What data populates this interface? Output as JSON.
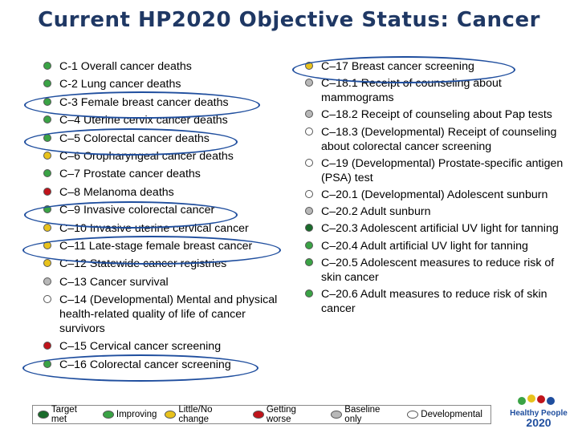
{
  "title": "Current HP2020 Objective Status: Cancer",
  "colors": {
    "target_met": "#1a6b2b",
    "improving": "#3aa345",
    "little_no_change": "#e8c21c",
    "getting_worse": "#c0141b",
    "baseline_only": "#b8b8b8",
    "developmental": "#ffffff",
    "oval": "#1f4e9e"
  },
  "left_items": [
    {
      "text": "C-1 Overall cancer deaths",
      "status": "improving"
    },
    {
      "text": "C-2 Lung cancer deaths",
      "status": "improving"
    },
    {
      "text": "C-3 Female breast cancer deaths",
      "status": "improving"
    },
    {
      "text": "C–4 Uterine cervix cancer deaths",
      "status": "improving"
    },
    {
      "text": "C–5 Colorectal cancer deaths",
      "status": "improving"
    },
    {
      "text": "C–6 Oropharyngeal cancer deaths",
      "status": "little_no_change"
    },
    {
      "text": "C–7 Prostate cancer deaths",
      "status": "improving"
    },
    {
      "text": "C–8 Melanoma deaths",
      "status": "getting_worse"
    },
    {
      "text": "C–9 Invasive colorectal cancer",
      "status": "improving"
    },
    {
      "text": "C–10 Invasive uterine cervical cancer",
      "status": "little_no_change"
    },
    {
      "text": "C–11 Late-stage female breast cancer",
      "status": "little_no_change"
    },
    {
      "text": "C–12 Statewide cancer registries",
      "status": "little_no_change"
    },
    {
      "text": "C–13 Cancer survival",
      "status": "baseline_only"
    },
    {
      "text": "C–14 (Developmental) Mental and physical health-related quality of life of cancer survivors",
      "status": "developmental"
    },
    {
      "text": "C–15 Cervical cancer screening",
      "status": "getting_worse"
    },
    {
      "text": "C–16 Colorectal cancer screening",
      "status": "improving"
    }
  ],
  "right_items": [
    {
      "text": "C–17 Breast cancer screening",
      "status": "little_no_change"
    },
    {
      "text": "C–18.1 Receipt of counseling about mammograms",
      "status": "baseline_only"
    },
    {
      "text": "C–18.2 Receipt of counseling about Pap tests",
      "status": "baseline_only"
    },
    {
      "text": "C–18.3 (Developmental) Receipt of counseling about colorectal cancer screening",
      "status": "developmental"
    },
    {
      "text": "C–19 (Developmental) Prostate-specific antigen (PSA) test",
      "status": "developmental"
    },
    {
      "text": "C–20.1 (Developmental) Adolescent sunburn",
      "status": "developmental"
    },
    {
      "text": "C–20.2 Adult sunburn",
      "status": "baseline_only"
    },
    {
      "text": "C–20.3 Adolescent artificial UV light for tanning",
      "status": "target_met"
    },
    {
      "text": "C–20.4 Adult artificial UV light for tanning",
      "status": "improving"
    },
    {
      "text": "C–20.5 Adolescent measures to reduce risk of skin cancer",
      "status": "improving"
    },
    {
      "text": "C–20.6 Adult measures to reduce risk of skin cancer",
      "status": "improving"
    }
  ],
  "legend": [
    {
      "label": "Target met",
      "status": "target_met"
    },
    {
      "label": "Improving",
      "status": "improving"
    },
    {
      "label": "Little/No change",
      "status": "little_no_change"
    },
    {
      "label": "Getting worse",
      "status": "getting_worse"
    },
    {
      "label": "Baseline only",
      "status": "baseline_only"
    },
    {
      "label": "Developmental",
      "status": "developmental"
    }
  ],
  "logo": {
    "line1": "Healthy People",
    "line2": "2020"
  }
}
